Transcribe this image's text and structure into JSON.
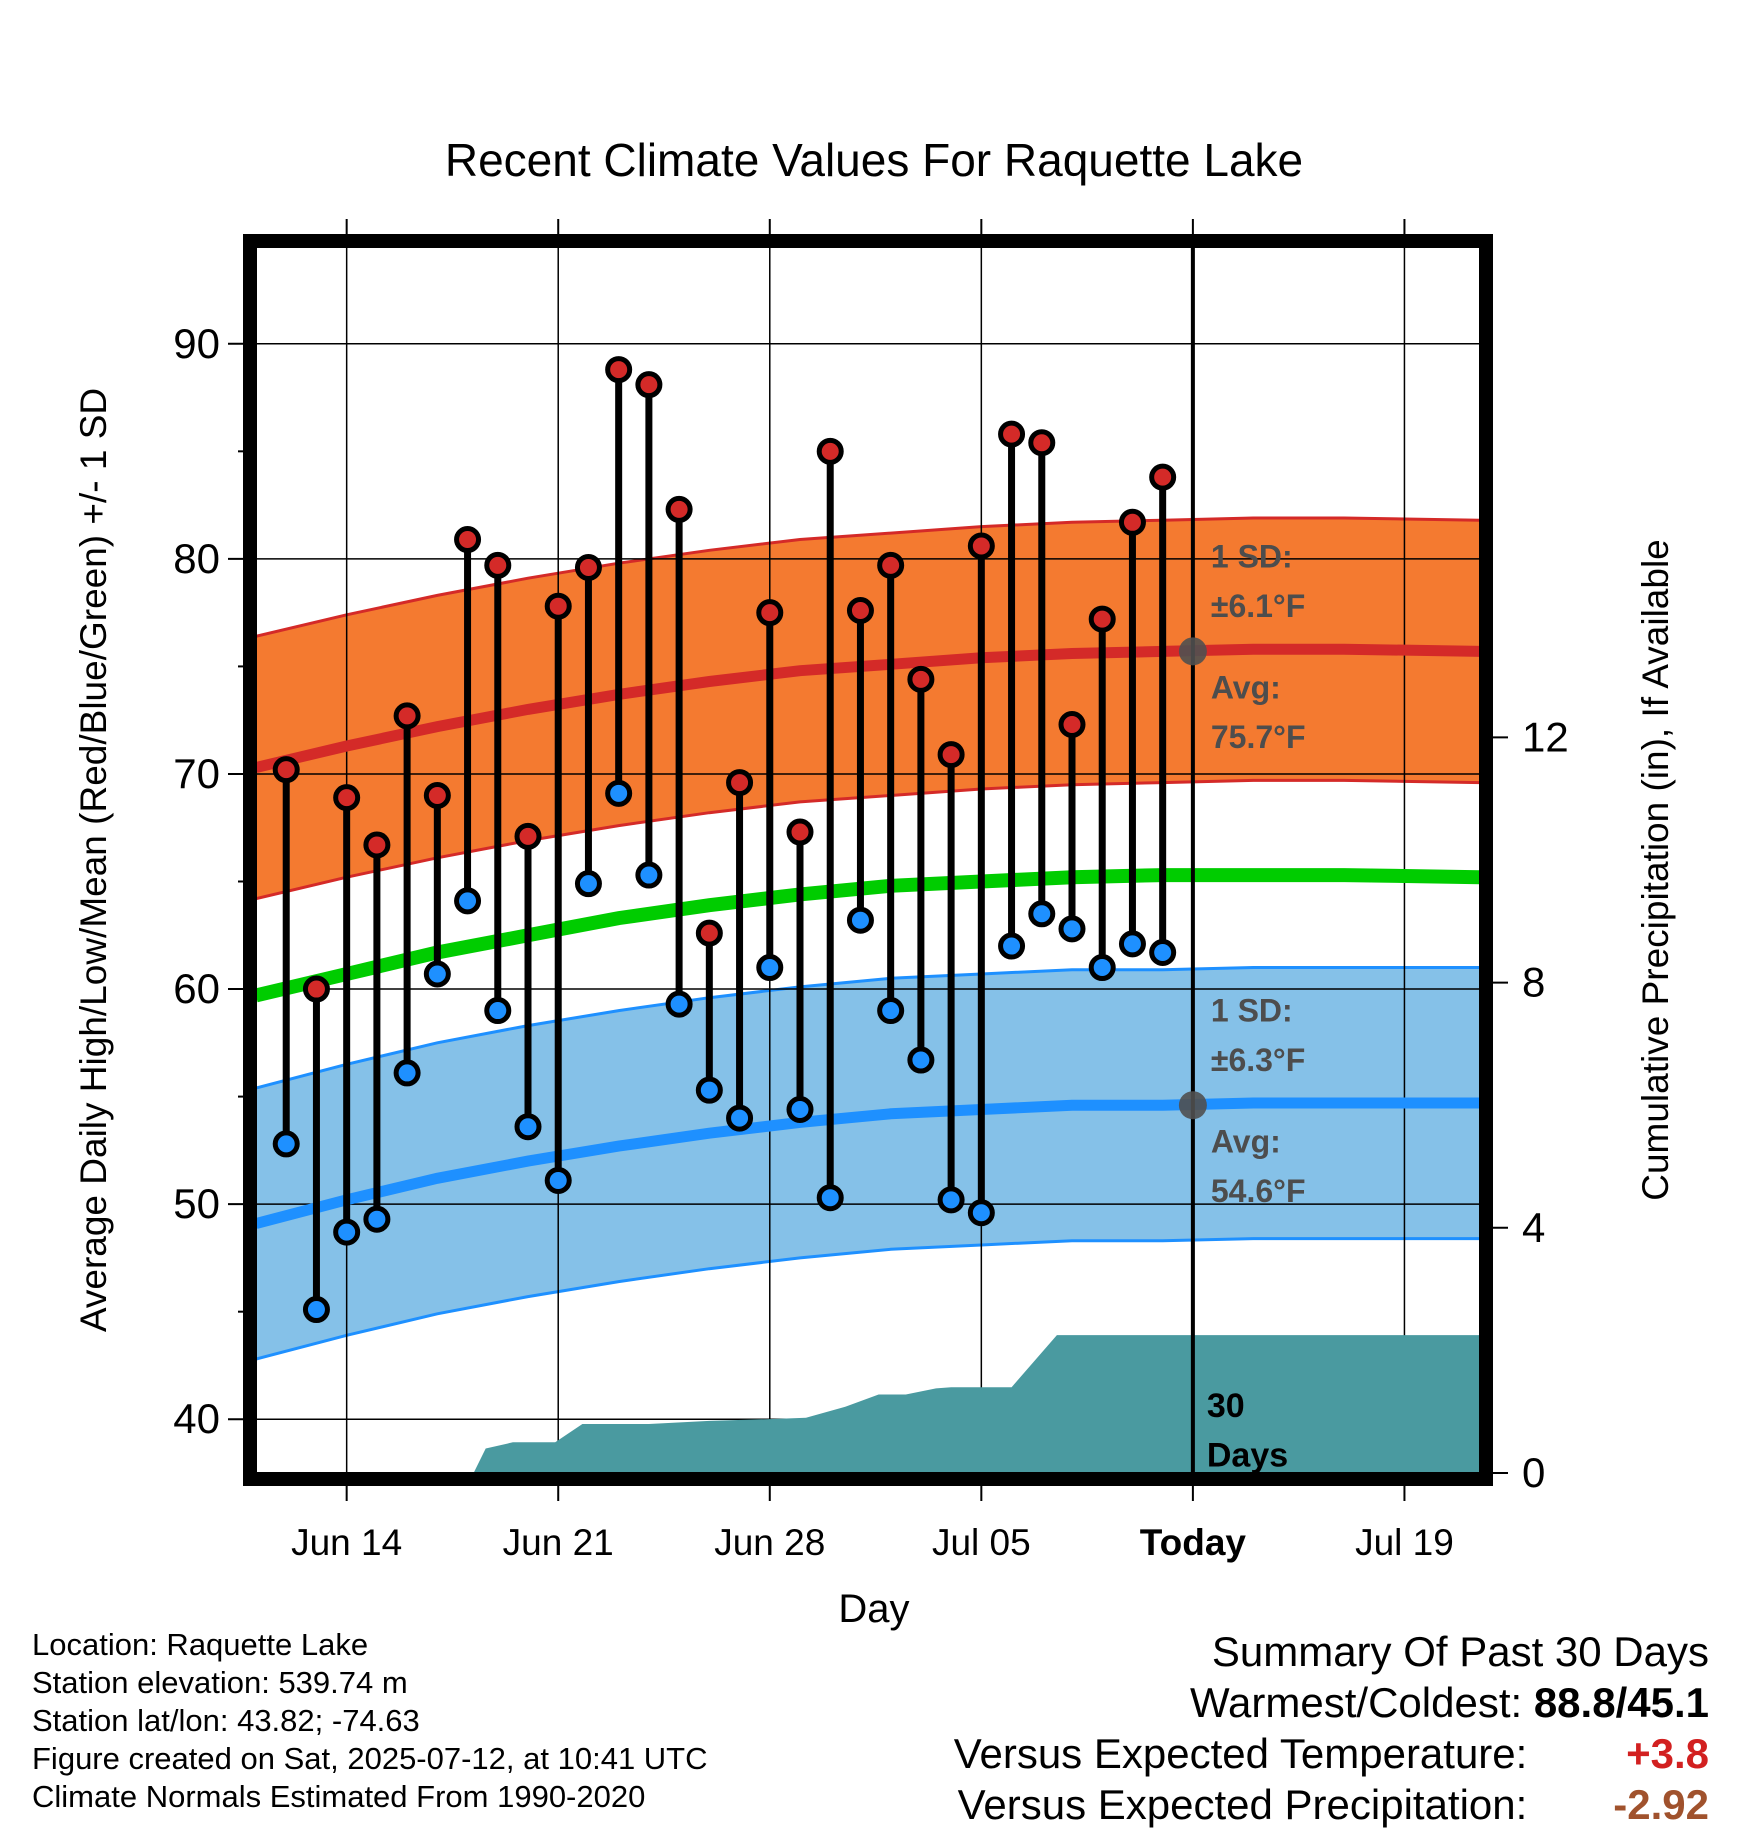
{
  "chart_data": {
    "type": "line",
    "title": "Recent Climate Values For Raquette Lake",
    "xlabel": "Day",
    "ylabel": "Average Daily High/Low/Mean (Red/Blue/Green) +/- 1 SD",
    "y2label": "Cumulative Precipitation (in), If Available",
    "xlim": [
      0,
      40.5
    ],
    "ylim": [
      37.5,
      94.5
    ],
    "y2lim": [
      0,
      20
    ],
    "x_ticks": [
      {
        "pos": 3,
        "label": "Jun 14"
      },
      {
        "pos": 10,
        "label": "Jun 21"
      },
      {
        "pos": 17,
        "label": "Jun 28"
      },
      {
        "pos": 24,
        "label": "Jul 05"
      },
      {
        "pos": 31,
        "label": "Today"
      },
      {
        "pos": 38,
        "label": "Jul 19"
      }
    ],
    "y_ticks": [
      40,
      50,
      60,
      70,
      80,
      90
    ],
    "y2_ticks": [
      0,
      4,
      8,
      12
    ],
    "today_x": 31,
    "daily_highs": [
      70.2,
      60.0,
      68.9,
      66.7,
      72.7,
      69.0,
      80.9,
      79.7,
      67.1,
      77.8,
      79.6,
      88.8,
      88.1,
      82.3,
      62.6,
      69.6,
      77.5,
      67.3,
      85.0,
      77.6,
      79.7,
      74.4,
      70.9,
      80.6,
      85.8,
      85.4,
      72.3,
      77.2,
      81.7,
      83.8
    ],
    "daily_lows": [
      52.8,
      45.1,
      48.7,
      49.3,
      56.1,
      60.7,
      64.1,
      59.0,
      53.6,
      51.1,
      64.9,
      69.1,
      65.3,
      59.3,
      55.3,
      54.0,
      61.0,
      54.4,
      50.3,
      63.2,
      59.0,
      56.7,
      50.2,
      49.6,
      62.0,
      63.5,
      62.8,
      61.0,
      62.1,
      61.7
    ],
    "normal_high": {
      "x": [
        0,
        3,
        6,
        9,
        12,
        15,
        18,
        21,
        24,
        27,
        30,
        33,
        36,
        40.5
      ],
      "values": [
        70.3,
        71.3,
        72.2,
        73.0,
        73.7,
        74.3,
        74.8,
        75.1,
        75.4,
        75.6,
        75.7,
        75.8,
        75.8,
        75.7
      ],
      "sd": 6.1
    },
    "normal_low": {
      "x": [
        0,
        3,
        6,
        9,
        12,
        15,
        18,
        21,
        24,
        27,
        30,
        33,
        36,
        40.5
      ],
      "values": [
        49.1,
        50.2,
        51.2,
        52.0,
        52.7,
        53.3,
        53.8,
        54.2,
        54.4,
        54.6,
        54.6,
        54.7,
        54.7,
        54.7
      ],
      "sd": 6.3
    },
    "normal_mean": {
      "x": [
        0,
        3,
        6,
        9,
        12,
        15,
        18,
        21,
        24,
        27,
        30,
        33,
        36,
        40.5
      ],
      "values": [
        59.7,
        60.7,
        61.7,
        62.5,
        63.3,
        63.9,
        64.4,
        64.8,
        65.0,
        65.2,
        65.3,
        65.3,
        65.3,
        65.2
      ]
    },
    "cumulative_precip": {
      "x": [
        0,
        7.2,
        7.6,
        8.5,
        9.4,
        9.9,
        10.8,
        13,
        15,
        17,
        18.2,
        19.5,
        20.6,
        21.5,
        22.5,
        23,
        24,
        25,
        26.5,
        27.5,
        31,
        40.5
      ],
      "values": [
        0,
        0,
        0.4,
        0.5,
        0.5,
        0.5,
        0.8,
        0.8,
        0.85,
        0.88,
        0.9,
        1.08,
        1.28,
        1.28,
        1.38,
        1.4,
        1.4,
        1.4,
        2.25,
        2.25,
        2.25,
        2.25
      ]
    },
    "annotations": {
      "high_sd_label": "1 SD:",
      "high_sd_value": "±6.1°F",
      "high_avg_label": "Avg:",
      "high_avg_value": "75.7°F",
      "low_sd_label": "1 SD:",
      "low_sd_value": "±6.3°F",
      "low_avg_label": "Avg:",
      "low_avg_value": "54.6°F",
      "days_line1": "30",
      "days_line2": "Days"
    },
    "colors": {
      "high_band": "#f47a30",
      "high_line": "#d42a28",
      "low_band": "#85c1e8",
      "low_line": "#1e90ff",
      "mean_line": "#00cc00",
      "precip": "#4a9aa0",
      "high_marker": "#d42a28",
      "low_marker": "#1e90ff"
    }
  },
  "info": {
    "location": "Location: Raquette Lake",
    "elevation": "Station elevation: 539.74 m",
    "latlon": "Station lat/lon: 43.82; -74.63",
    "created": "Figure created on Sat, 2025-07-12, at 10:41 UTC",
    "normals": "Climate Normals Estimated From 1990-2020"
  },
  "summary": {
    "title": "Summary Of Past 30 Days",
    "warmest_label": "Warmest/Coldest:",
    "warmest_value": "88.8/45.1",
    "temp_label": "Versus Expected Temperature:",
    "temp_value": "+3.8",
    "precip_label": "Versus Expected Precipitation:",
    "precip_value": "-2.92"
  }
}
